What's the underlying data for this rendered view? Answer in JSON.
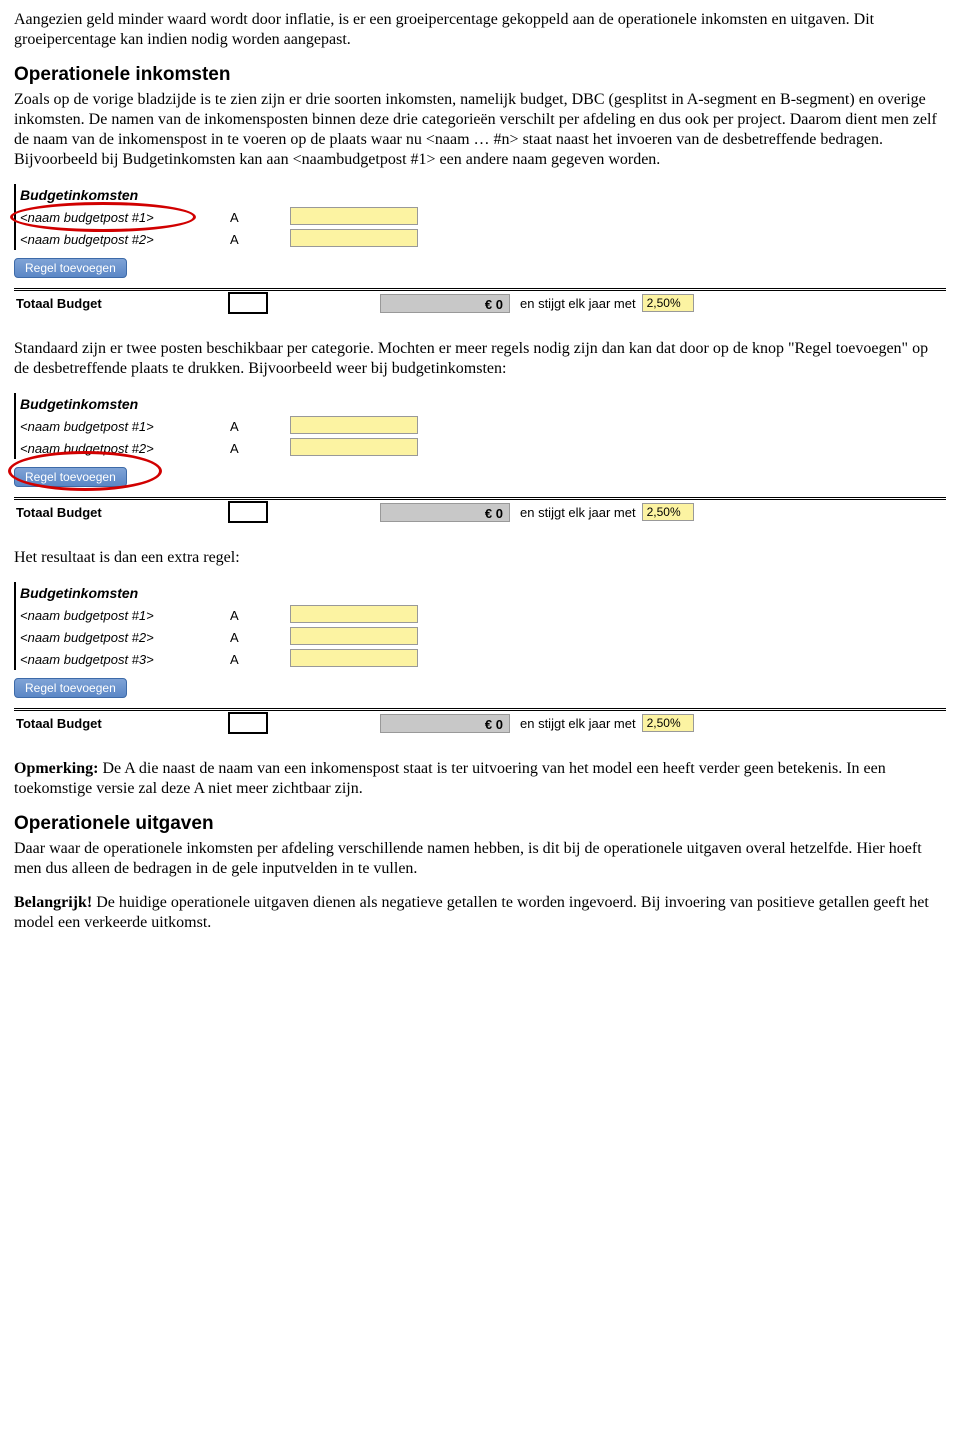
{
  "intro": {
    "p1": "Aangezien geld minder waard wordt door inflatie, is er een groeipercentage gekoppeld aan de operationele inkomsten en uitgaven. Dit groeipercentage kan indien nodig worden aangepast."
  },
  "section1": {
    "heading": "Operationele inkomsten",
    "p1": "Zoals op de vorige bladzijde is te zien zijn er drie soorten inkomsten, namelijk budget, DBC (gesplitst in A-segment en B-segment) en overige inkomsten. De namen van de inkomensposten binnen deze drie categorieën verschilt per afdeling en dus ook per project. Daarom dient men zelf de naam van de inkomenspost in te voeren op de plaats waar nu <naam … #n> staat naast het invoeren van de desbetreffende bedragen. Bijvoorbeeld bij Budgetinkomsten kan aan <naambudgetpost #1> een andere naam gegeven worden."
  },
  "shot_common": {
    "header": "Budgetinkomsten",
    "post1": "<naam budgetpost #1>",
    "post2": "<naam budgetpost #2>",
    "post3": "<naam budgetpost #3>",
    "colA": "A",
    "btn": "Regel toevoegen",
    "total_label": "Totaal Budget",
    "amount": "€ 0",
    "stijgt": "en stijgt elk jaar met",
    "pct": "2,50%"
  },
  "mid": {
    "p1": "Standaard zijn er twee posten beschikbaar per categorie. Mochten er meer regels nodig zijn dan kan dat door op de knop \"Regel toevoegen\" op de desbetreffende plaats te drukken. Bijvoorbeeld weer bij budgetinkomsten:",
    "p2": "Het resultaat is dan een extra regel:"
  },
  "opmerking": {
    "label": "Opmerking:",
    "text": " De A die naast de naam van een inkomenspost staat is ter uitvoering van het model een heeft verder geen betekenis. In een toekomstige versie zal deze A niet meer zichtbaar zijn."
  },
  "section2": {
    "heading": "Operationele uitgaven",
    "p1": "Daar waar de operationele inkomsten per afdeling verschillende namen hebben, is dit bij de operationele uitgaven overal hetzelfde. Hier hoeft men dus alleen de bedragen in de gele inputvelden in te vullen."
  },
  "belangrijk": {
    "label": "Belangrijk!",
    "text": " De huidige operationele uitgaven dienen als negatieve getallen te worden ingevoerd. Bij invoering van positieve getallen geeft het model een verkeerde uitkomst."
  }
}
